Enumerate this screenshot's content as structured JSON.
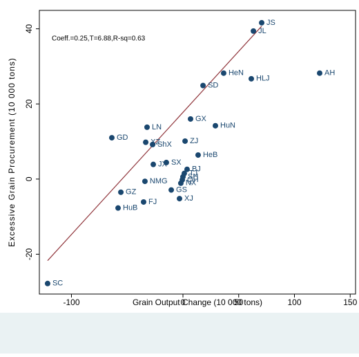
{
  "chart_data": {
    "type": "scatter",
    "xlabel": "Grain Output Change (10 000 tons)",
    "ylabel": "Excessive Grain Procurement (10 000 tons)",
    "annotation": "Coeff.=0.25,T=6.88,R-sq=0.63",
    "xlim": [
      -128.8,
      154.8
    ],
    "ylim": [
      -30.6,
      44.9
    ],
    "xticks": [
      -100,
      0,
      50,
      100,
      150
    ],
    "yticks": [
      -20,
      0,
      20,
      40
    ],
    "color": "#1a476f",
    "line_color": "#90353b",
    "labels": [
      "JS",
      "JL",
      "HeN",
      "HLJ",
      "AH",
      "SD",
      "GX",
      "HuN",
      "LN",
      "GD",
      "XZ",
      "ShX",
      "ZJ",
      "HeB",
      "SX",
      "JX",
      "BJ",
      "TJ",
      "SH",
      "QH",
      "NX",
      "GS",
      "NMG",
      "GZ",
      "XJ",
      "FJ",
      "HuB",
      "SC"
    ],
    "x": [
      70.6,
      63.2,
      36.5,
      61.3,
      122.6,
      18.0,
      6.8,
      29.1,
      -32.2,
      -63.8,
      -33.4,
      -27.2,
      1.9,
      13.6,
      -14.9,
      -26.6,
      3.7,
      1.2,
      0.0,
      -0.6,
      -1.9,
      -10.5,
      -34.1,
      -55.7,
      -3.1,
      -35.3,
      -58.2,
      -121.4
    ],
    "values": [
      41.6,
      39.4,
      28.2,
      26.7,
      28.2,
      24.9,
      16.0,
      14.2,
      13.8,
      11.0,
      9.8,
      9.2,
      10.1,
      6.4,
      4.4,
      3.9,
      2.6,
      1.5,
      0.6,
      -0.2,
      -1.1,
      -2.9,
      -0.6,
      -3.5,
      -5.2,
      -6.1,
      -7.7,
      -27.8
    ],
    "fit_line": {
      "x": [
        -121.4,
        70.6
      ],
      "y": [
        -21.7,
        40.7
      ]
    }
  }
}
